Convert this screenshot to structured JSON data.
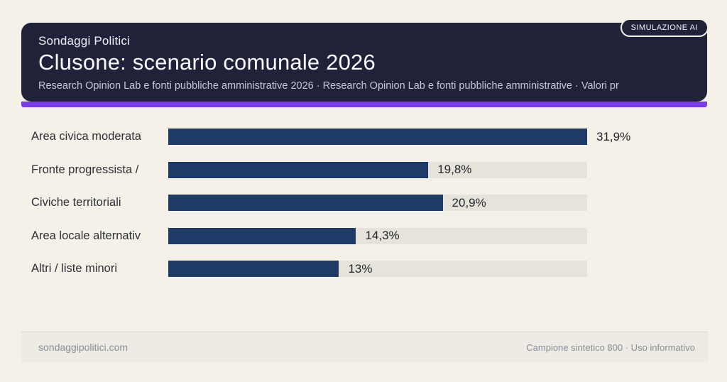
{
  "badge": {
    "label": "SIMULAZIONE AI"
  },
  "header": {
    "eyebrow": "Sondaggi Politici",
    "title": "Clusone: scenario comunale 2026",
    "subtitle": "Research Opinion Lab e fonti pubbliche amministrative 2026 · Research Opinion Lab e fonti pubbliche amministrative · Valori pr"
  },
  "chart_data": {
    "type": "bar",
    "orientation": "horizontal",
    "title": "Clusone: scenario comunale 2026",
    "categories": [
      "Area civica moderata",
      "Fronte progressista /",
      "Civiche territoriali",
      "Area locale alternativ",
      "Altri / liste minori"
    ],
    "values": [
      31.9,
      19.8,
      20.9,
      14.3,
      13.0
    ],
    "value_labels": [
      "31,9%",
      "19,8%",
      "20,9%",
      "14,3%",
      "13%"
    ],
    "max_value": 31.9,
    "unit": "%",
    "grid": false,
    "legend": false
  },
  "footer": {
    "left": "sondaggipolitici.com",
    "right": "Campione sintetico 800 · Uso informativo"
  },
  "colors": {
    "page_background": "#f5f0e8",
    "card_background": "#20223a",
    "accent_purple": "#7c3aed",
    "bar_fill": "#1e3a66",
    "bar_track": "#e6e3db",
    "label_text": "#2d3036",
    "footer_text": "#888e98"
  }
}
